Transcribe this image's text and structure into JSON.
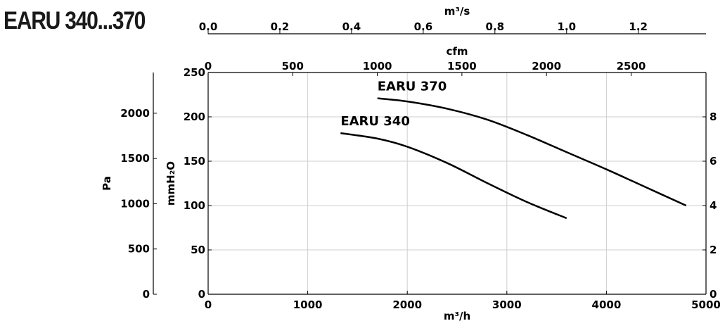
{
  "title": "EARU 340...370",
  "chart_data": {
    "type": "line",
    "title": "EARU 340...370",
    "xlabel": "m³/h",
    "xlim": [
      0,
      5000
    ],
    "xticks": [
      "0",
      "1000",
      "2000",
      "3000",
      "4000",
      "5000"
    ],
    "ylabel_left_outer": "Pa",
    "ylim_pa": [
      0,
      2450
    ],
    "yticks_pa": [
      "0",
      "500",
      "1000",
      "1500",
      "2000"
    ],
    "ylabel_left_inner": "mmH₂O",
    "ylim_mmh2o": [
      0,
      250
    ],
    "yticks_mmh2o": [
      "0",
      "50",
      "100",
      "150",
      "200",
      "250"
    ],
    "top_axis_1_label": "cfm",
    "top_axis_1_ticks": [
      "0",
      "500",
      "1000",
      "1500",
      "2000",
      "2500"
    ],
    "top_axis_2_label": "m³/s",
    "top_axis_2_ticks": [
      "0.0",
      "0.2",
      "0.4",
      "0.6",
      "0.8",
      "1.0",
      "1.2"
    ],
    "right_axis_ticks": [
      "0",
      "2",
      "4",
      "6",
      "8"
    ],
    "right_axis_label": "",
    "grid": true,
    "series": [
      {
        "name": "EARU 370",
        "x": [
          1700,
          2000,
          2400,
          2800,
          3200,
          3600,
          4000,
          4400,
          4800
        ],
        "y": [
          2165,
          2130,
          2050,
          1930,
          1760,
          1570,
          1380,
          1180,
          980
        ]
      },
      {
        "name": "EARU 340",
        "x": [
          1330,
          1700,
          2000,
          2400,
          2800,
          3200,
          3600
        ],
        "y": [
          1780,
          1720,
          1630,
          1450,
          1230,
          1020,
          840
        ]
      }
    ]
  }
}
